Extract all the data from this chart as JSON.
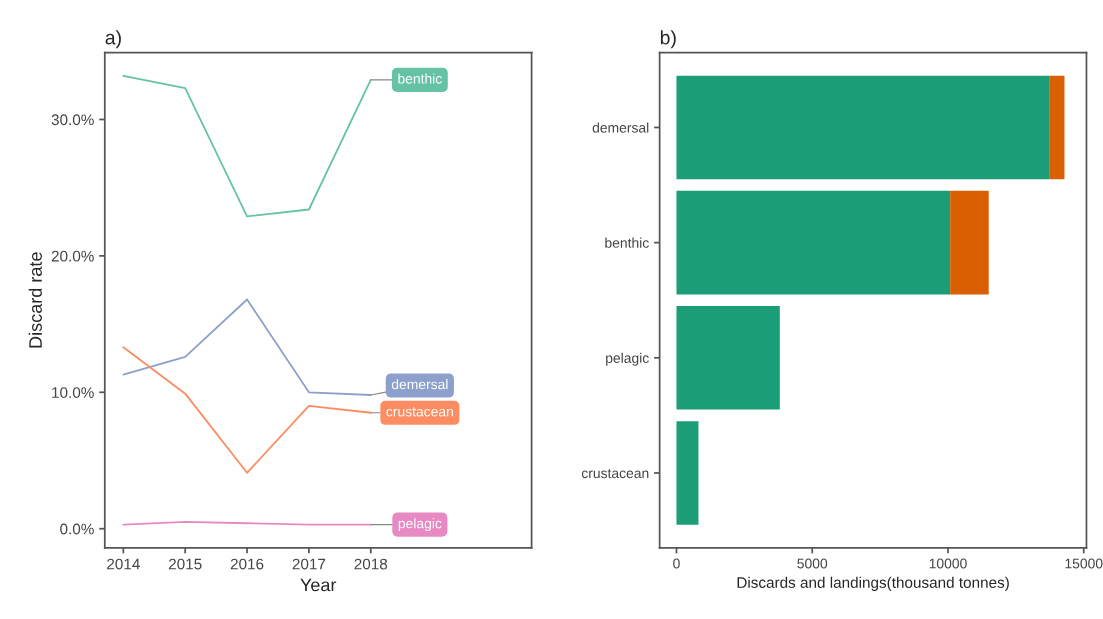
{
  "chart_data": [
    {
      "type": "line",
      "title": "a)",
      "xlabel": "Year",
      "ylabel": "Discard rate",
      "x": [
        2014,
        2015,
        2016,
        2017,
        2018
      ],
      "series": [
        {
          "name": "benthic",
          "color": "#66c2a5",
          "values": [
            33.2,
            32.3,
            22.9,
            23.4,
            32.9
          ]
        },
        {
          "name": "demersal",
          "color": "#8da0cb",
          "values": [
            11.3,
            12.6,
            16.8,
            10.0,
            9.8
          ]
        },
        {
          "name": "crustacean",
          "color": "#fc8d62",
          "values": [
            13.3,
            9.9,
            4.1,
            9.0,
            8.5
          ]
        },
        {
          "name": "pelagic",
          "color": "#e78ac3",
          "values": [
            0.3,
            0.5,
            0.4,
            0.3,
            0.3
          ]
        }
      ],
      "xlim": [
        2013.7,
        2020.6
      ],
      "xticks": [
        2014,
        2015,
        2016,
        2017,
        2018
      ],
      "ylim": [
        -1.4,
        34.9
      ],
      "yticks": [
        {
          "value": 0,
          "label": "0.0%"
        },
        {
          "value": 10,
          "label": "10.0%"
        },
        {
          "value": 20,
          "label": "20.0%"
        },
        {
          "value": 30,
          "label": "30.0%"
        }
      ],
      "grid": false,
      "legend": false
    },
    {
      "type": "bar",
      "title": "b)",
      "xlabel": "Discards and landings(thousand tonnes)",
      "orientation": "horizontal",
      "stacked": true,
      "categories": [
        "demersal",
        "benthic",
        "pelagic",
        "crustacean"
      ],
      "series": [
        {
          "color": "#1b9e77",
          "values": [
            13750,
            10080,
            3780,
            810
          ]
        },
        {
          "color": "#d95f02",
          "values": [
            540,
            1420,
            30,
            null
          ]
        }
      ],
      "xlim": [
        -620,
        15100
      ],
      "xticks": [
        0,
        5000,
        10000,
        15000
      ],
      "grid": false,
      "legend": false
    }
  ]
}
